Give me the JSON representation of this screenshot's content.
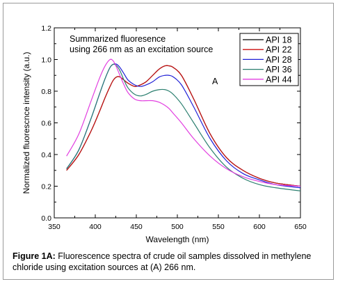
{
  "chart_data": {
    "type": "line",
    "xlabel": "Wavelength (nm)",
    "ylabel": "Normalized fluorescnce intensity (a.u.)",
    "xlim": [
      350,
      650
    ],
    "ylim": [
      0.0,
      1.2
    ],
    "x_ticks": [
      "350",
      "400",
      "450",
      "500",
      "550",
      "600",
      "650"
    ],
    "y_ticks": [
      "0.0",
      "0.2",
      "0.4",
      "0.6",
      "0.8",
      "1.0",
      "1.2"
    ],
    "annotation_lines": [
      "Summarized fluoresence",
      "using 266 nm as an excitation source"
    ],
    "panel_label": "A",
    "legend_position": "top-right",
    "grid": false,
    "x": [
      365,
      380,
      395,
      405,
      412,
      418,
      422,
      426,
      430,
      435,
      440,
      448,
      455,
      462,
      470,
      478,
      485,
      490,
      495,
      505,
      520,
      540,
      560,
      580,
      600,
      620,
      650
    ],
    "series": [
      {
        "name": "API 18",
        "color": "#000000",
        "values": [
          0.3,
          0.4,
          0.55,
          0.67,
          0.76,
          0.83,
          0.87,
          0.89,
          0.89,
          0.87,
          0.85,
          0.83,
          0.84,
          0.86,
          0.9,
          0.94,
          0.96,
          0.96,
          0.95,
          0.9,
          0.75,
          0.53,
          0.38,
          0.3,
          0.25,
          0.22,
          0.2
        ]
      },
      {
        "name": "API 22",
        "color": "#cc1111",
        "values": [
          0.3,
          0.4,
          0.55,
          0.67,
          0.76,
          0.83,
          0.87,
          0.89,
          0.89,
          0.87,
          0.85,
          0.83,
          0.84,
          0.86,
          0.9,
          0.94,
          0.96,
          0.96,
          0.95,
          0.9,
          0.75,
          0.53,
          0.38,
          0.3,
          0.25,
          0.22,
          0.2
        ]
      },
      {
        "name": "API 28",
        "color": "#1f1fd6",
        "values": [
          0.31,
          0.43,
          0.63,
          0.78,
          0.88,
          0.95,
          0.97,
          0.97,
          0.95,
          0.91,
          0.87,
          0.84,
          0.83,
          0.84,
          0.86,
          0.89,
          0.9,
          0.9,
          0.89,
          0.84,
          0.7,
          0.5,
          0.36,
          0.28,
          0.24,
          0.21,
          0.19
        ]
      },
      {
        "name": "API 36",
        "color": "#2b7f6f",
        "values": [
          0.31,
          0.43,
          0.63,
          0.78,
          0.88,
          0.95,
          0.97,
          0.96,
          0.93,
          0.87,
          0.82,
          0.78,
          0.77,
          0.78,
          0.8,
          0.81,
          0.81,
          0.8,
          0.78,
          0.72,
          0.6,
          0.44,
          0.32,
          0.25,
          0.21,
          0.19,
          0.17
        ]
      },
      {
        "name": "API 44",
        "color": "#e23ee0",
        "values": [
          0.39,
          0.53,
          0.74,
          0.88,
          0.96,
          1.0,
          0.99,
          0.95,
          0.9,
          0.84,
          0.79,
          0.75,
          0.74,
          0.74,
          0.74,
          0.73,
          0.71,
          0.69,
          0.66,
          0.6,
          0.5,
          0.39,
          0.31,
          0.26,
          0.23,
          0.21,
          0.2
        ]
      }
    ]
  },
  "caption": {
    "label": "Figure 1A:",
    "text": " Fluorescence spectra of crude oil samples dissolved in methylene chloride using excitation sources at (A) 266 nm."
  }
}
